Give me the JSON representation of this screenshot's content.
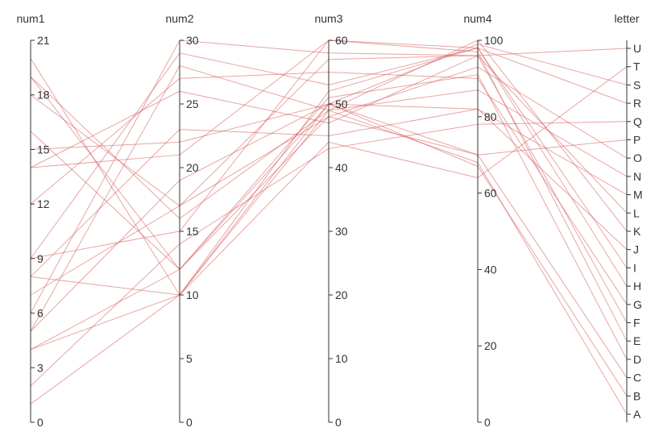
{
  "chart_data": {
    "type": "parallel-coordinates",
    "line_color": "#d75a5a",
    "axes": [
      {
        "key": "num1",
        "label": "num1",
        "kind": "linear",
        "domain": [
          0,
          21
        ],
        "ticks": [
          0,
          3,
          6,
          9,
          12,
          15,
          18,
          21
        ]
      },
      {
        "key": "num2",
        "label": "num2",
        "kind": "linear",
        "domain": [
          0,
          30
        ],
        "ticks": [
          0,
          5,
          10,
          15,
          20,
          25,
          30
        ]
      },
      {
        "key": "num3",
        "label": "num3",
        "kind": "linear",
        "domain": [
          0,
          60
        ],
        "ticks": [
          0,
          10,
          20,
          30,
          40,
          50,
          60
        ]
      },
      {
        "key": "num4",
        "label": "num4",
        "kind": "linear",
        "domain": [
          0,
          100
        ],
        "ticks": [
          0,
          20,
          40,
          60,
          80,
          100
        ]
      },
      {
        "key": "letter",
        "label": "letter",
        "kind": "category",
        "categories": [
          "A",
          "B",
          "C",
          "D",
          "E",
          "F",
          "G",
          "H",
          "I",
          "J",
          "K",
          "L",
          "M",
          "N",
          "O",
          "P",
          "Q",
          "R",
          "S",
          "T",
          "U"
        ]
      }
    ],
    "rows": [
      {
        "num1": 19,
        "num2": 16,
        "num3": 49,
        "num4": 68,
        "letter": "A"
      },
      {
        "num1": 19,
        "num2": 12,
        "num3": 50,
        "num4": 67,
        "letter": "B"
      },
      {
        "num1": 18,
        "num2": 17,
        "num3": 48,
        "num4": 70,
        "letter": "C"
      },
      {
        "num1": 16,
        "num2": 12,
        "num3": 51,
        "num4": 91,
        "letter": "D"
      },
      {
        "num1": 14,
        "num2": 21,
        "num3": 60,
        "num4": 97,
        "letter": "E"
      },
      {
        "num1": 14,
        "num2": 26,
        "num3": 47,
        "num4": 96,
        "letter": "F"
      },
      {
        "num1": 12,
        "num2": 27,
        "num3": 55,
        "num4": 90,
        "letter": "G"
      },
      {
        "num1": 9,
        "num2": 29,
        "num3": 53,
        "num4": 98,
        "letter": "H"
      },
      {
        "num1": 9,
        "num2": 15,
        "num3": 60,
        "num4": 98,
        "letter": "I"
      },
      {
        "num1": 8,
        "num2": 23,
        "num3": 45,
        "num4": 82,
        "letter": "J"
      },
      {
        "num1": 8,
        "num2": 10,
        "num3": 49,
        "num4": 100,
        "letter": "K"
      },
      {
        "num1": 7,
        "num2": 17,
        "num3": 57,
        "num4": 96,
        "letter": "L"
      },
      {
        "num1": 5,
        "num2": 19,
        "num3": 50,
        "num4": 82,
        "letter": "M"
      },
      {
        "num1": 5,
        "num2": 28,
        "num3": 49,
        "num4": 87,
        "letter": "N"
      },
      {
        "num1": 4,
        "num2": 12,
        "num3": 48,
        "num4": 93,
        "letter": "O"
      },
      {
        "num1": 4,
        "num2": 10,
        "num3": 50,
        "num4": 70,
        "letter": "P"
      },
      {
        "num1": 2,
        "num2": 14,
        "num3": 43,
        "num4": 78,
        "letter": "Q"
      },
      {
        "num1": 1,
        "num2": 10,
        "num3": 52,
        "num4": 98,
        "letter": "R"
      },
      {
        "num1": 15,
        "num2": 22,
        "num3": 50,
        "num4": 99,
        "letter": "S"
      },
      {
        "num1": 20,
        "num2": 10,
        "num3": 44,
        "num4": 64,
        "letter": "T"
      },
      {
        "num1": 6,
        "num2": 30,
        "num3": 58,
        "num4": 96,
        "letter": "U"
      }
    ]
  }
}
